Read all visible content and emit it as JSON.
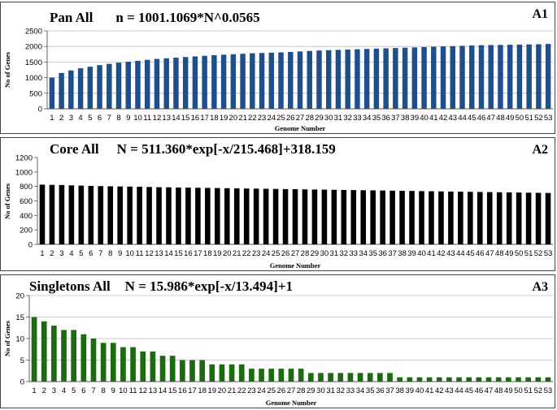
{
  "chart_data": [
    {
      "type": "bar",
      "title": "Pan All",
      "equation": "n = 1001.1069*N^0.0565",
      "panel_tag": "A1",
      "xlabel": "Genome  Number",
      "ylabel": "No of Genes",
      "ylim": [
        0,
        2500
      ],
      "ytick_step": 500,
      "grid": true,
      "color": "#1f4e8c",
      "categories": [
        "1",
        "2",
        "3",
        "4",
        "5",
        "6",
        "7",
        "8",
        "9",
        "10",
        "11",
        "12",
        "13",
        "14",
        "15",
        "16",
        "17",
        "18",
        "19",
        "20",
        "21",
        "22",
        "23",
        "24",
        "25",
        "26",
        "27",
        "28",
        "29",
        "30",
        "31",
        "32",
        "33",
        "34",
        "35",
        "36",
        "37",
        "38",
        "39",
        "40",
        "41",
        "42",
        "43",
        "44",
        "45",
        "46",
        "47",
        "48",
        "49",
        "50",
        "51",
        "52",
        "53"
      ],
      "values": [
        1000,
        1150,
        1230,
        1300,
        1350,
        1400,
        1440,
        1480,
        1510,
        1540,
        1570,
        1600,
        1620,
        1640,
        1660,
        1680,
        1700,
        1720,
        1735,
        1750,
        1765,
        1780,
        1790,
        1800,
        1810,
        1825,
        1840,
        1855,
        1870,
        1880,
        1890,
        1900,
        1910,
        1920,
        1930,
        1940,
        1950,
        1960,
        1970,
        1980,
        1990,
        2000,
        2010,
        2020,
        2030,
        2040,
        2045,
        2050,
        2055,
        2060,
        2065,
        2070,
        2080
      ]
    },
    {
      "type": "bar",
      "title": "Core All",
      "equation": "N = 511.360*exp[-x/215.468]+318.159",
      "panel_tag": "A2",
      "xlabel": "Genome  Number",
      "ylabel": "No of Genes",
      "ylim": [
        0,
        1200
      ],
      "ytick_step": 200,
      "grid": false,
      "color": "#000000",
      "categories": [
        "1",
        "2",
        "3",
        "4",
        "5",
        "6",
        "7",
        "8",
        "9",
        "10",
        "11",
        "12",
        "13",
        "14",
        "15",
        "16",
        "17",
        "18",
        "19",
        "20",
        "21",
        "22",
        "23",
        "24",
        "25",
        "26",
        "27",
        "28",
        "29",
        "30",
        "31",
        "32",
        "33",
        "34",
        "35",
        "36",
        "37",
        "38",
        "39",
        "40",
        "41",
        "42",
        "43",
        "44",
        "45",
        "46",
        "47",
        "48",
        "49",
        "50",
        "51",
        "52",
        "53"
      ],
      "values": [
        825,
        822,
        820,
        815,
        812,
        808,
        805,
        802,
        800,
        798,
        796,
        793,
        790,
        788,
        786,
        784,
        782,
        780,
        778,
        776,
        774,
        772,
        770,
        768,
        766,
        764,
        762,
        760,
        758,
        756,
        754,
        752,
        750,
        748,
        746,
        744,
        742,
        740,
        738,
        736,
        734,
        732,
        730,
        728,
        726,
        724,
        722,
        720,
        718,
        716,
        714,
        712,
        710
      ]
    },
    {
      "type": "bar",
      "title": "Singletons All",
      "equation": "N = 15.986*exp[-x/13.494]+1",
      "panel_tag": "A3",
      "xlabel": "Genome  Number",
      "ylabel": "No of Genes",
      "ylim": [
        0,
        20
      ],
      "ytick_step": 5,
      "grid": true,
      "color": "#1d6b10",
      "categories": [
        "1",
        "2",
        "3",
        "4",
        "5",
        "6",
        "7",
        "8",
        "9",
        "10",
        "11",
        "12",
        "13",
        "14",
        "15",
        "16",
        "17",
        "18",
        "19",
        "20",
        "21",
        "22",
        "23",
        "24",
        "25",
        "26",
        "27",
        "28",
        "29",
        "30",
        "31",
        "32",
        "33",
        "34",
        "35",
        "36",
        "37",
        "38",
        "39",
        "40",
        "41",
        "42",
        "43",
        "44",
        "45",
        "46",
        "47",
        "48",
        "49",
        "50",
        "51",
        "52",
        "53"
      ],
      "values": [
        15,
        14,
        13,
        12,
        12,
        11,
        10,
        9,
        9,
        8,
        8,
        7,
        7,
        6,
        6,
        5,
        5,
        5,
        4,
        4,
        4,
        4,
        3,
        3,
        3,
        3,
        3,
        3,
        2,
        2,
        2,
        2,
        2,
        2,
        2,
        2,
        2,
        1,
        1,
        1,
        1,
        1,
        1,
        1,
        1,
        1,
        1,
        1,
        1,
        1,
        1,
        1,
        1
      ]
    }
  ]
}
